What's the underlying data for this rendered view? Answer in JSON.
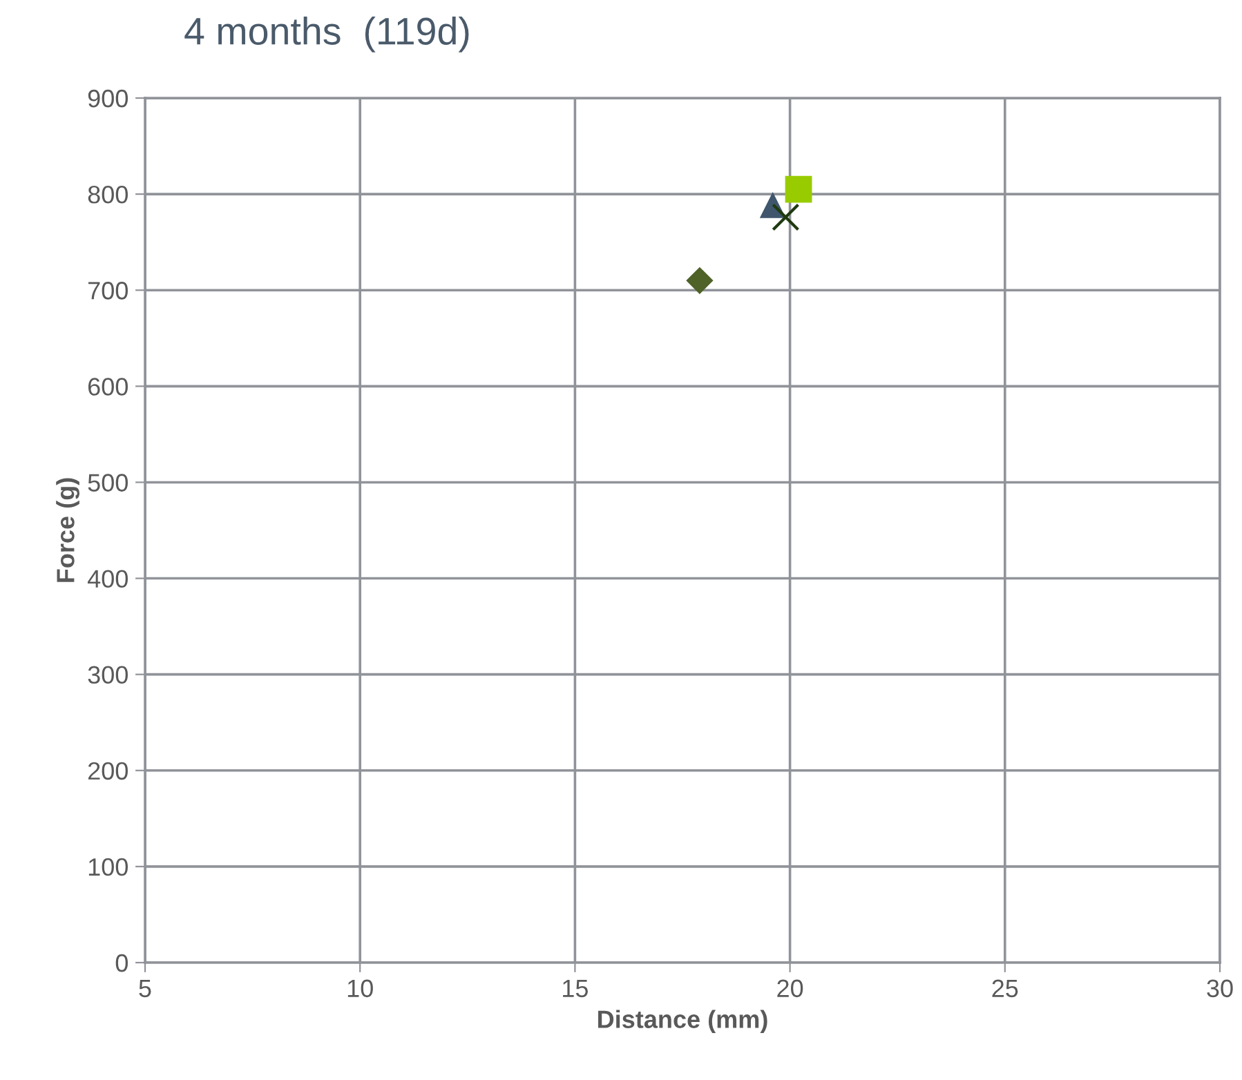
{
  "chart_data": {
    "type": "scatter",
    "title": "4 months  (119d)",
    "xlabel": "Distance (mm)",
    "ylabel": "Force (g)",
    "xlim": [
      5,
      30
    ],
    "xticks": [
      5,
      10,
      15,
      20,
      25,
      30
    ],
    "ylim": [
      0,
      900
    ],
    "yticks": [
      0,
      100,
      200,
      300,
      400,
      500,
      600,
      700,
      800,
      900
    ],
    "grid": true,
    "legend": false,
    "series": [
      {
        "color": "#4f6228",
        "marker": "diamond",
        "x": [
          17.9
        ],
        "values": [
          710
        ]
      },
      {
        "color": "#3f566c",
        "marker": "triangle",
        "x": [
          19.6
        ],
        "values": [
          788
        ]
      },
      {
        "color": "#1f3a10",
        "marker": "cross",
        "x": [
          19.9
        ],
        "values": [
          776
        ]
      },
      {
        "color": "#99cc00",
        "marker": "square",
        "x": [
          20.2
        ],
        "values": [
          805
        ]
      }
    ]
  }
}
